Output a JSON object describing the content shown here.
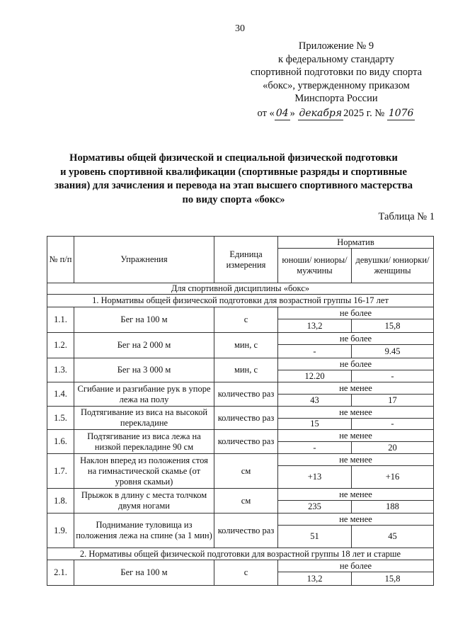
{
  "page_number": "30",
  "appendix": {
    "line1": "Приложение № 9",
    "line2": "к федеральному стандарту",
    "line3": "спортивной подготовки по виду спорта",
    "line4": "«бокс», утвержденному приказом",
    "line5": "Минспорта России",
    "date_prefix": "от «",
    "day": "04",
    "mid": "»",
    "month": "декабря",
    "year_text": "2025 г. №",
    "number": "1076"
  },
  "title": [
    "Нормативы общей физической и специальной физической подготовки",
    "и уровень спортивной квалификации (спортивные разряды и спортивные",
    "звания) для зачисления и перевода на этап высшего спортивного мастерства",
    "по виду спорта «бокс»"
  ],
  "table_label": "Таблица № 1",
  "table": {
    "headers": {
      "num": "№ п/п",
      "exercise": "Упражнения",
      "unit": "Единица измерения",
      "norm": "Норматив",
      "male": "юноши/ юниоры/ мужчины",
      "female": "девушки/ юниорки/ женщины"
    },
    "discipline": "Для спортивной дисциплины «бокс»",
    "section1": "1. Нормативы общей физической подготовки для возрастной группы 16-17 лет",
    "section2": "2. Нормативы общей физической подготовки для возрастной группы 18 лет и старше",
    "rows": [
      {
        "num": "1.1.",
        "exercise": "Бег на 100 м",
        "unit": "с",
        "cond": "не более",
        "male": "13,2",
        "female": "15,8"
      },
      {
        "num": "1.2.",
        "exercise": "Бег на 2 000 м",
        "unit": "мин, с",
        "cond": "не более",
        "male": "-",
        "female": "9.45"
      },
      {
        "num": "1.3.",
        "exercise": "Бег на 3 000 м",
        "unit": "мин, с",
        "cond": "не более",
        "male": "12.20",
        "female": "-"
      },
      {
        "num": "1.4.",
        "exercise": "Сгибание и разгибание рук в упоре лежа на полу",
        "unit": "количество раз",
        "cond": "не менее",
        "male": "43",
        "female": "17"
      },
      {
        "num": "1.5.",
        "exercise": "Подтягивание из виса на высокой перекладине",
        "unit": "количество раз",
        "cond": "не менее",
        "male": "15",
        "female": "-"
      },
      {
        "num": "1.6.",
        "exercise": "Подтягивание из виса лежа на низкой перекладине 90 см",
        "unit": "количество раз",
        "cond": "не менее",
        "male": "-",
        "female": "20"
      },
      {
        "num": "1.7.",
        "exercise": "Наклон вперед из положения стоя на гимнастической скамье (от уровня скамьи)",
        "unit": "см",
        "cond": "не менее",
        "male": "+13",
        "female": "+16"
      },
      {
        "num": "1.8.",
        "exercise": "Прыжок в длину с места толчком двумя ногами",
        "unit": "см",
        "cond": "не менее",
        "male": "235",
        "female": "188"
      },
      {
        "num": "1.9.",
        "exercise": "Поднимание туловища из положения лежа на спине (за 1 мин)",
        "unit": "количество раз",
        "cond": "не менее",
        "male": "51",
        "female": "45"
      },
      {
        "num": "2.1.",
        "exercise": "Бег на 100 м",
        "unit": "с",
        "cond": "не более",
        "male": "13,2",
        "female": "15,8"
      }
    ]
  }
}
